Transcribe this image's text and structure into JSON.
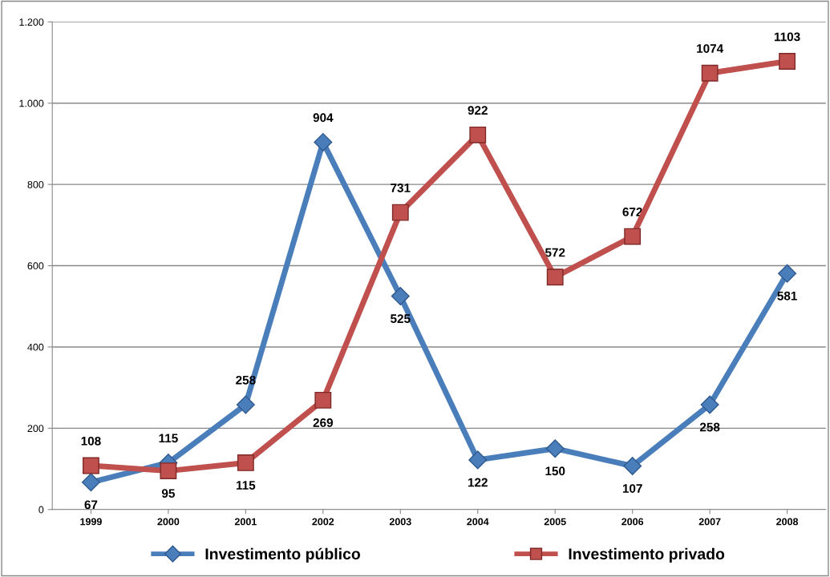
{
  "chart_data": {
    "type": "line",
    "categories": [
      "1999",
      "2000",
      "2001",
      "2002",
      "2003",
      "2004",
      "2005",
      "2006",
      "2007",
      "2008"
    ],
    "series": [
      {
        "name": "Investimento público",
        "color": "#4a7ebb",
        "marker": "diamond",
        "values": [
          67,
          115,
          258,
          904,
          525,
          122,
          150,
          107,
          258,
          581
        ]
      },
      {
        "name": "Investimento privado",
        "color": "#c0504d",
        "marker": "square",
        "values": [
          108,
          95,
          115,
          269,
          731,
          922,
          572,
          672,
          1074,
          1103
        ]
      }
    ],
    "ylim": [
      0,
      1200
    ],
    "yticks": [
      0,
      200,
      400,
      600,
      800,
      {
        "value": 1000,
        "label": "1.000"
      },
      {
        "value": 1200,
        "label": "1.200"
      }
    ],
    "grid": "y",
    "legend": "bottom",
    "data_labels": true,
    "line_style": "solid"
  }
}
